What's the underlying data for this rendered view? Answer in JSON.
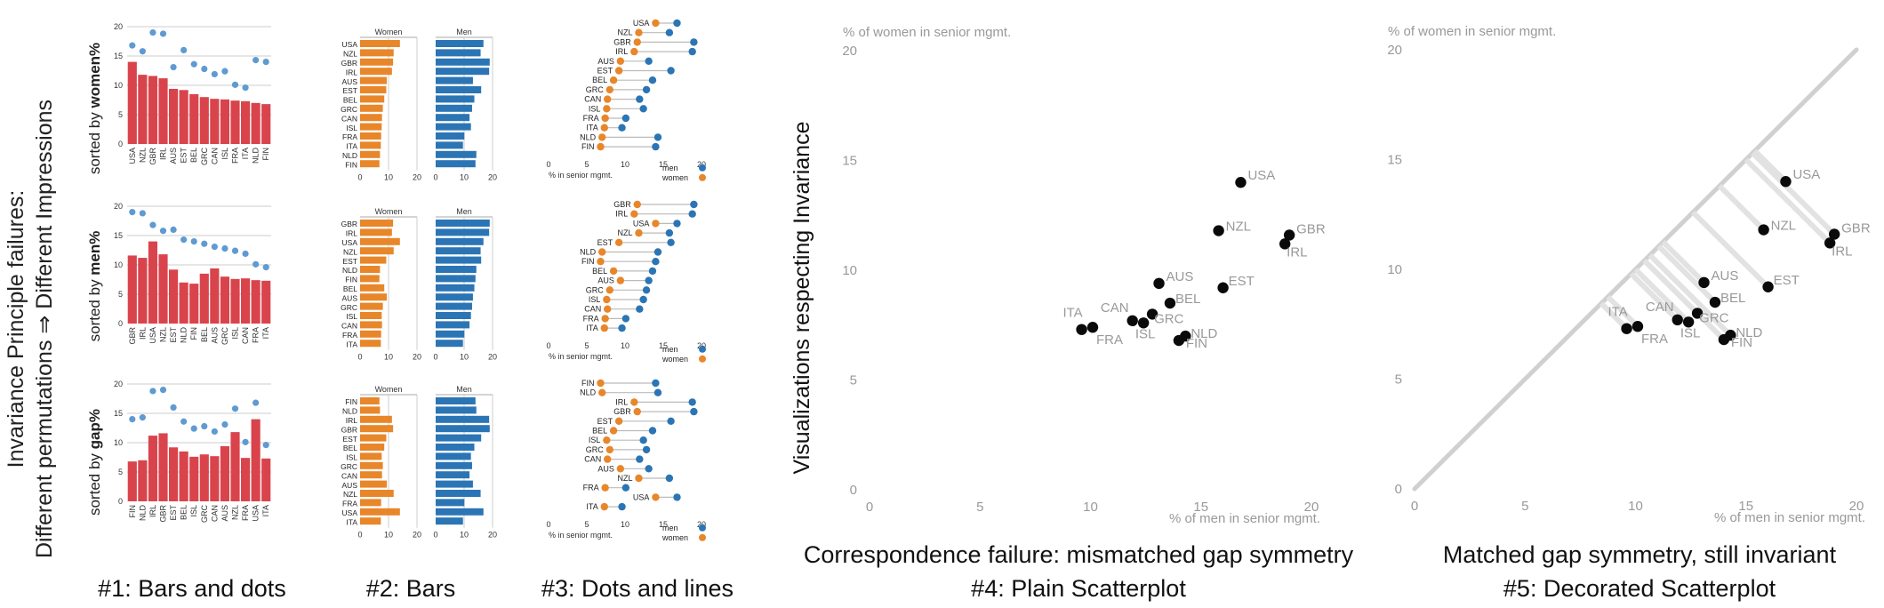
{
  "side_title": {
    "line1": "Invariance Principle failures:",
    "line2": "Different permutations ⇒ Different Impressions"
  },
  "row_labels": [
    {
      "prefix": "sorted by ",
      "key": "women%"
    },
    {
      "prefix": "sorted by ",
      "key": "men%"
    },
    {
      "prefix": "sorted by ",
      "key": "gap%"
    }
  ],
  "panel_labels": {
    "p1": "#1: Bars and dots",
    "p2": "#2: Bars",
    "p3": "#3: Dots and lines",
    "p4_caption": "Correspondence failure: mismatched gap symmetry",
    "p4": "#4: Plain Scatterplot",
    "p5_caption": "Matched gap symmetry, still invariant",
    "p5": "#5: Decorated Scatterplot"
  },
  "scatter_group_label": "Visualizations respecting Invariance",
  "colors": {
    "women": "#e8862a",
    "men": "#2b75b5",
    "bar_red": "#d9444c",
    "dot_blue": "#5f9ad2",
    "grid": "#cccccc",
    "muted": "#999999"
  },
  "chart_data": [
    {
      "type": "bar",
      "panel": "#1: Bars and dots",
      "ylim": [
        0,
        20
      ],
      "yticks": [
        0,
        5,
        10,
        15,
        20
      ],
      "rows": [
        {
          "categories": [
            "USA",
            "NZL",
            "GBR",
            "IRL",
            "AUS",
            "EST",
            "BEL",
            "GRC",
            "CAN",
            "ISL",
            "FRA",
            "ITA",
            "NLD",
            "FIN"
          ],
          "women": [
            14.0,
            11.8,
            11.6,
            11.2,
            9.4,
            9.2,
            8.5,
            8.0,
            7.7,
            7.6,
            7.4,
            7.3,
            7.0,
            6.8
          ],
          "men": [
            16.8,
            15.8,
            19.0,
            18.8,
            13.1,
            16.0,
            13.6,
            12.8,
            11.9,
            12.4,
            10.1,
            9.6,
            14.3,
            14.0
          ]
        },
        {
          "categories": [
            "GBR",
            "IRL",
            "USA",
            "NZL",
            "EST",
            "NLD",
            "FIN",
            "BEL",
            "AUS",
            "GRC",
            "ISL",
            "CAN",
            "FRA",
            "ITA"
          ],
          "women": [
            11.6,
            11.2,
            14.0,
            11.8,
            9.2,
            7.0,
            6.8,
            8.5,
            9.4,
            8.0,
            7.6,
            7.7,
            7.4,
            7.3
          ],
          "men": [
            19.0,
            18.8,
            16.8,
            15.8,
            16.0,
            14.3,
            14.0,
            13.6,
            13.1,
            12.8,
            12.4,
            11.9,
            10.1,
            9.6
          ]
        },
        {
          "categories": [
            "FIN",
            "NLD",
            "IRL",
            "GBR",
            "EST",
            "BEL",
            "ISL",
            "GRC",
            "CAN",
            "AUS",
            "NZL",
            "FRA",
            "USA",
            "ITA"
          ],
          "women": [
            6.8,
            7.0,
            11.2,
            11.6,
            9.2,
            8.5,
            7.6,
            8.0,
            7.7,
            9.4,
            11.8,
            7.4,
            14.0,
            7.3
          ],
          "men": [
            14.0,
            14.3,
            18.8,
            19.0,
            16.0,
            13.6,
            12.4,
            12.8,
            11.9,
            13.1,
            15.8,
            10.1,
            16.8,
            9.6
          ]
        }
      ]
    },
    {
      "type": "bar",
      "panel": "#2: Bars",
      "series_labels": [
        "Women",
        "Men"
      ],
      "xlim": [
        0,
        20
      ],
      "xticks": [
        0,
        10,
        20
      ],
      "rows": [
        {
          "categories": [
            "USA",
            "NZL",
            "GBR",
            "IRL",
            "AUS",
            "EST",
            "BEL",
            "GRC",
            "CAN",
            "ISL",
            "FRA",
            "ITA",
            "NLD",
            "FIN"
          ],
          "women": [
            14.0,
            11.8,
            11.6,
            11.2,
            9.4,
            9.2,
            8.5,
            8.0,
            7.7,
            7.6,
            7.4,
            7.3,
            7.0,
            6.8
          ],
          "men": [
            16.8,
            15.8,
            19.0,
            18.8,
            13.1,
            16.0,
            13.6,
            12.8,
            11.9,
            12.4,
            10.1,
            9.6,
            14.3,
            14.0
          ]
        },
        {
          "categories": [
            "GBR",
            "IRL",
            "USA",
            "NZL",
            "EST",
            "NLD",
            "FIN",
            "BEL",
            "AUS",
            "GRC",
            "ISL",
            "CAN",
            "FRA",
            "ITA"
          ],
          "women": [
            11.6,
            11.2,
            14.0,
            11.8,
            9.2,
            7.0,
            6.8,
            8.5,
            9.4,
            8.0,
            7.6,
            7.7,
            7.4,
            7.3
          ],
          "men": [
            19.0,
            18.8,
            16.8,
            15.8,
            16.0,
            14.3,
            14.0,
            13.6,
            13.1,
            12.8,
            12.4,
            11.9,
            10.1,
            9.6
          ]
        },
        {
          "categories": [
            "FIN",
            "NLD",
            "IRL",
            "GBR",
            "EST",
            "BEL",
            "ISL",
            "GRC",
            "CAN",
            "AUS",
            "NZL",
            "FRA",
            "USA",
            "ITA"
          ],
          "women": [
            6.8,
            7.0,
            11.2,
            11.6,
            9.2,
            8.5,
            7.6,
            8.0,
            7.7,
            9.4,
            11.8,
            7.4,
            14.0,
            7.3
          ],
          "men": [
            14.0,
            14.3,
            18.8,
            19.0,
            16.0,
            13.6,
            12.4,
            12.8,
            11.9,
            13.1,
            15.8,
            10.1,
            16.8,
            9.6
          ]
        }
      ]
    },
    {
      "type": "scatter",
      "panel": "#3: Dots and lines",
      "xlim": [
        0,
        20
      ],
      "xticks": [
        0,
        5,
        10,
        15,
        20
      ],
      "xlabel": "% in senior mgmt.",
      "legend": [
        "men",
        "women"
      ],
      "rows": [
        {
          "categories": [
            "USA",
            "NZL",
            "GBR",
            "IRL",
            "AUS",
            "EST",
            "BEL",
            "GRC",
            "CAN",
            "ISL",
            "FRA",
            "ITA",
            "NLD",
            "FIN"
          ],
          "women": [
            14.0,
            11.8,
            11.6,
            11.2,
            9.4,
            9.2,
            8.5,
            8.0,
            7.7,
            7.6,
            7.4,
            7.3,
            7.0,
            6.8
          ],
          "men": [
            16.8,
            15.8,
            19.0,
            18.8,
            13.1,
            16.0,
            13.6,
            12.8,
            11.9,
            12.4,
            10.1,
            9.6,
            14.3,
            14.0
          ]
        },
        {
          "categories": [
            "GBR",
            "IRL",
            "USA",
            "NZL",
            "EST",
            "NLD",
            "FIN",
            "BEL",
            "AUS",
            "GRC",
            "ISL",
            "CAN",
            "FRA",
            "ITA"
          ],
          "women": [
            11.6,
            11.2,
            14.0,
            11.8,
            9.2,
            7.0,
            6.8,
            8.5,
            9.4,
            8.0,
            7.6,
            7.7,
            7.4,
            7.3
          ],
          "men": [
            19.0,
            18.8,
            16.8,
            15.8,
            16.0,
            14.3,
            14.0,
            13.6,
            13.1,
            12.8,
            12.4,
            11.9,
            10.1,
            9.6
          ]
        },
        {
          "categories": [
            "FIN",
            "NLD",
            "IRL",
            "GBR",
            "EST",
            "BEL",
            "ISL",
            "GRC",
            "CAN",
            "AUS",
            "NZL",
            "FRA",
            "USA",
            "ITA"
          ],
          "women": [
            6.8,
            7.0,
            11.2,
            11.6,
            9.2,
            8.5,
            7.6,
            8.0,
            7.7,
            9.4,
            11.8,
            7.4,
            14.0,
            7.3
          ],
          "men": [
            14.0,
            14.3,
            18.8,
            19.0,
            16.0,
            13.6,
            12.4,
            12.8,
            11.9,
            13.1,
            15.8,
            10.1,
            16.8,
            9.6
          ]
        }
      ]
    },
    {
      "type": "scatter",
      "panel": "#4: Plain Scatterplot",
      "xlabel": "% of men in senior mgmt.",
      "ylabel": "% of women in senior mgmt.",
      "xlim": [
        0,
        20
      ],
      "ylim": [
        0,
        20
      ],
      "xticks": [
        0,
        5,
        10,
        15,
        20
      ],
      "yticks": [
        0,
        5,
        10,
        15,
        20
      ],
      "points": [
        {
          "label": "USA",
          "x": 16.8,
          "y": 14.0
        },
        {
          "label": "NZL",
          "x": 15.8,
          "y": 11.8
        },
        {
          "label": "GBR",
          "x": 19.0,
          "y": 11.6
        },
        {
          "label": "IRL",
          "x": 18.8,
          "y": 11.2
        },
        {
          "label": "AUS",
          "x": 13.1,
          "y": 9.4
        },
        {
          "label": "EST",
          "x": 16.0,
          "y": 9.2
        },
        {
          "label": "BEL",
          "x": 13.6,
          "y": 8.5
        },
        {
          "label": "GRC",
          "x": 12.8,
          "y": 8.0
        },
        {
          "label": "CAN",
          "x": 11.9,
          "y": 7.7
        },
        {
          "label": "ISL",
          "x": 12.4,
          "y": 7.6
        },
        {
          "label": "FRA",
          "x": 10.1,
          "y": 7.4
        },
        {
          "label": "ITA",
          "x": 9.6,
          "y": 7.3
        },
        {
          "label": "NLD",
          "x": 14.3,
          "y": 7.0
        },
        {
          "label": "FIN",
          "x": 14.0,
          "y": 6.8
        }
      ]
    },
    {
      "type": "scatter",
      "panel": "#5: Decorated Scatterplot",
      "xlabel": "% of men in senior mgmt.",
      "ylabel": "% of women in senior mgmt.",
      "xlim": [
        0,
        20
      ],
      "ylim": [
        0,
        20
      ],
      "xticks": [
        0,
        5,
        10,
        15,
        20
      ],
      "yticks": [
        0,
        5,
        10,
        15,
        20
      ],
      "reference_line": "y = x",
      "points": [
        {
          "label": "USA",
          "x": 16.8,
          "y": 14.0
        },
        {
          "label": "NZL",
          "x": 15.8,
          "y": 11.8
        },
        {
          "label": "GBR",
          "x": 19.0,
          "y": 11.6
        },
        {
          "label": "IRL",
          "x": 18.8,
          "y": 11.2
        },
        {
          "label": "AUS",
          "x": 13.1,
          "y": 9.4
        },
        {
          "label": "EST",
          "x": 16.0,
          "y": 9.2
        },
        {
          "label": "BEL",
          "x": 13.6,
          "y": 8.5
        },
        {
          "label": "GRC",
          "x": 12.8,
          "y": 8.0
        },
        {
          "label": "CAN",
          "x": 11.9,
          "y": 7.7
        },
        {
          "label": "ISL",
          "x": 12.4,
          "y": 7.6
        },
        {
          "label": "FRA",
          "x": 10.1,
          "y": 7.4
        },
        {
          "label": "ITA",
          "x": 9.6,
          "y": 7.3
        },
        {
          "label": "NLD",
          "x": 14.3,
          "y": 7.0
        },
        {
          "label": "FIN",
          "x": 14.0,
          "y": 6.8
        }
      ]
    }
  ]
}
